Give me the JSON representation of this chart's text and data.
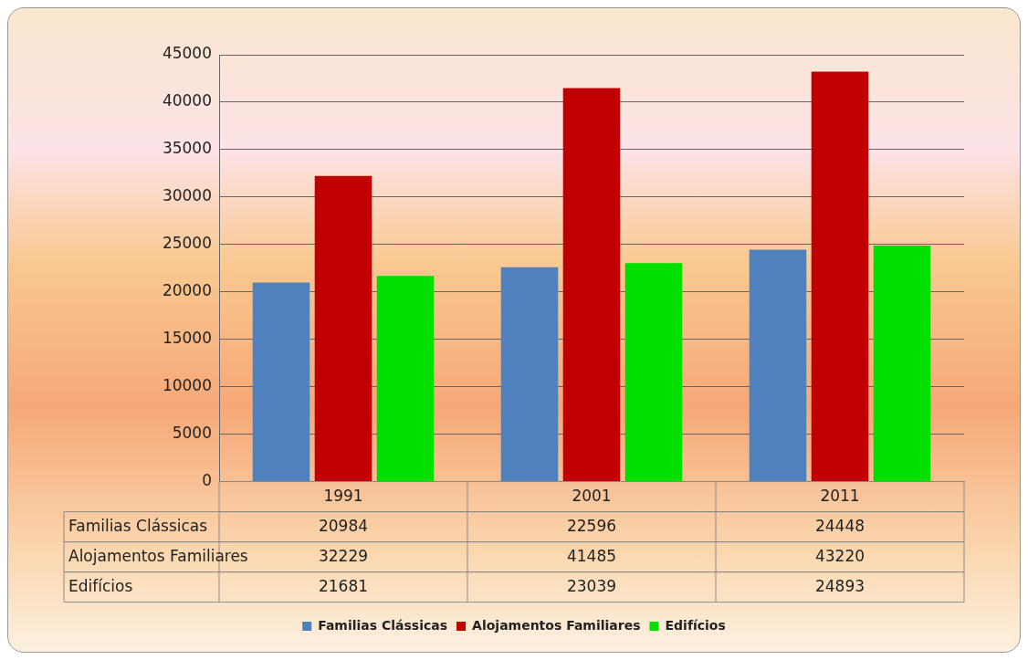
{
  "chart_data": {
    "type": "bar",
    "categories": [
      "1991",
      "2001",
      "2011"
    ],
    "series": [
      {
        "name": "Familias Clássicas",
        "color": "#4f81bd",
        "values": [
          20984,
          22596,
          24448
        ]
      },
      {
        "name": "Alojamentos Familiares",
        "color": "#c00000",
        "values": [
          32229,
          41485,
          43220
        ]
      },
      {
        "name": "Edifícios",
        "color": "#00e000",
        "values": [
          21681,
          23039,
          24893
        ]
      }
    ],
    "ylim": [
      0,
      45000
    ],
    "yticks": [
      0,
      5000,
      10000,
      15000,
      20000,
      25000,
      30000,
      35000,
      40000,
      45000
    ],
    "grid": "y",
    "legend": "bottom",
    "data_labels": true
  }
}
